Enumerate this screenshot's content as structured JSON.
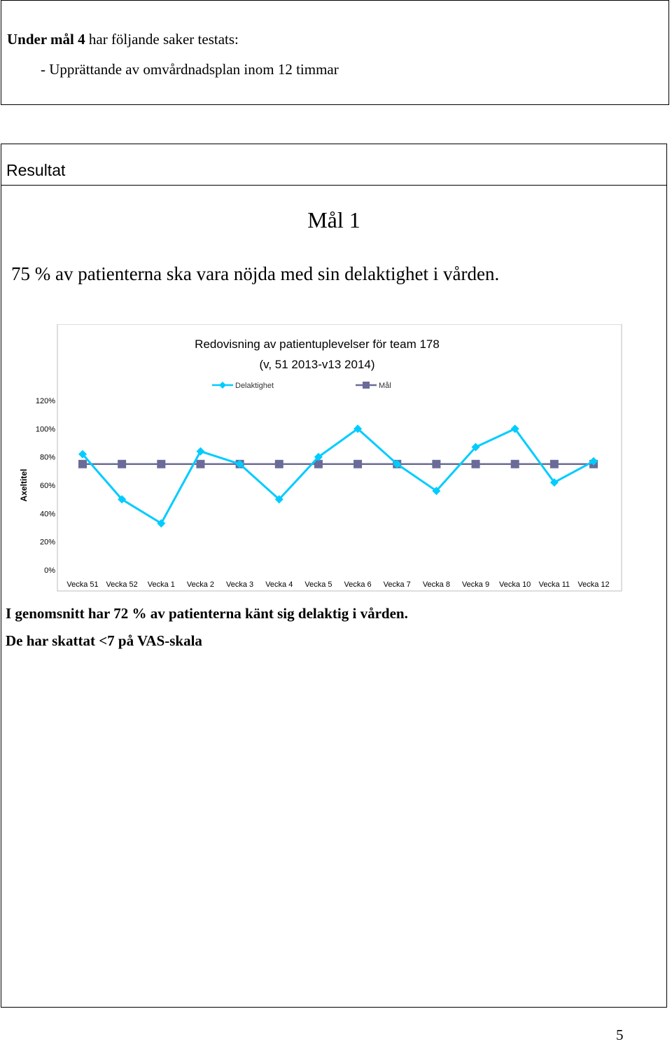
{
  "box1": {
    "line1_bold": "Under mål 4",
    "line1_rest": " har följande saker testats:",
    "line2": "- Upprättande av omvårdnadsplan inom 12 timmar"
  },
  "result": {
    "heading": "Resultat",
    "goal_title": "Mål 1",
    "goal_text": "75 % av patienterna ska vara nöjda med sin delaktighet i vården.",
    "summary_line1": "I genomsnitt har 72 % av patienterna känt sig delaktig i vården.",
    "summary_line2": "De har skattat <7 på VAS-skala"
  },
  "page_number": "5",
  "chart_data": {
    "type": "line",
    "title": "Redovisning av patientuplevelser för team 178",
    "subtitle": "(v, 51 2013-v13 2014)",
    "ylabel": "Axeltitel",
    "xlabel": "",
    "ylim": [
      0,
      1.2
    ],
    "yticks": [
      "0%",
      "20%",
      "40%",
      "60%",
      "80%",
      "100%",
      "120%"
    ],
    "legend_position": "top",
    "categories": [
      "Vecka 51",
      "Vecka 52",
      "Vecka 1",
      "Vecka 2",
      "Vecka 3",
      "Vecka 4",
      "Vecka 5",
      "Vecka 6",
      "Vecka 7",
      "Vecka 8",
      "Vecka 9",
      "Vecka 10",
      "Vecka 11",
      "Vecka 12"
    ],
    "series": [
      {
        "name": "Delaktighet",
        "color": "#00ccff",
        "marker": "diamond",
        "values": [
          0.82,
          0.5,
          0.33,
          0.84,
          0.75,
          0.5,
          0.8,
          1.0,
          0.75,
          0.56,
          0.87,
          1.0,
          0.62,
          0.77
        ]
      },
      {
        "name": "Mål",
        "color": "#6b6b99",
        "marker": "square",
        "values": [
          0.75,
          0.75,
          0.75,
          0.75,
          0.75,
          0.75,
          0.75,
          0.75,
          0.75,
          0.75,
          0.75,
          0.75,
          0.75,
          0.75
        ]
      }
    ],
    "grid": false
  }
}
